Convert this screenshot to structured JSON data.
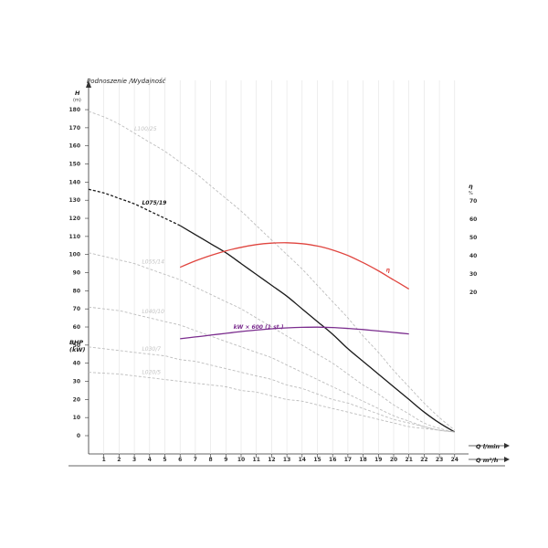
{
  "chart_data": {
    "type": "line",
    "title": "Podnoszenie /Wydajność",
    "y_left": {
      "label": "H",
      "unit": "(m)",
      "range": [
        0,
        180
      ],
      "ticks": [
        0,
        10,
        20,
        30,
        40,
        50,
        60,
        70,
        80,
        90,
        100,
        110,
        120,
        130,
        140,
        150,
        160,
        170,
        180
      ]
    },
    "y_right": {
      "label": "η",
      "unit": "%",
      "ticks": [
        20,
        30,
        40,
        50,
        60,
        70
      ]
    },
    "y_bhp": {
      "label": "BHP",
      "unit": "(kW)"
    },
    "x": {
      "label_top": "Q l/min",
      "label_bottom": "Q m³/h",
      "range": [
        0,
        24
      ],
      "ticks": [
        1,
        2,
        3,
        4,
        5,
        6,
        7,
        8,
        9,
        10,
        11,
        12,
        13,
        14,
        15,
        16,
        17,
        18,
        19,
        20,
        21,
        22,
        23,
        24
      ]
    },
    "series": [
      {
        "name": "L075/19",
        "kind": "highlight",
        "color": "#1a1a1a",
        "label_at": 3.5,
        "points": [
          [
            0,
            136
          ],
          [
            1,
            134
          ],
          [
            2,
            131
          ],
          [
            3,
            128
          ],
          [
            4,
            124
          ],
          [
            5,
            120
          ],
          [
            6,
            116
          ],
          [
            7,
            111
          ],
          [
            8,
            106
          ],
          [
            9,
            101
          ],
          [
            10,
            95
          ],
          [
            11,
            89
          ],
          [
            12,
            83
          ],
          [
            13,
            77
          ],
          [
            14,
            70
          ],
          [
            15,
            63
          ],
          [
            16,
            56
          ],
          [
            17,
            48
          ],
          [
            18,
            41
          ],
          [
            19,
            34
          ],
          [
            20,
            27
          ],
          [
            21,
            20
          ],
          [
            22,
            13
          ],
          [
            23,
            7
          ],
          [
            24,
            2
          ]
        ]
      },
      {
        "name": "L100/25",
        "kind": "gray",
        "color": "#bdbdbd",
        "label_at": 3.0,
        "points": [
          [
            0,
            179
          ],
          [
            1,
            176
          ],
          [
            2,
            172
          ],
          [
            3,
            167
          ],
          [
            4,
            162
          ],
          [
            5,
            157
          ],
          [
            6,
            151
          ],
          [
            7,
            145
          ],
          [
            8,
            138
          ],
          [
            9,
            131
          ],
          [
            10,
            124
          ],
          [
            11,
            116
          ],
          [
            12,
            108
          ],
          [
            13,
            100
          ],
          [
            14,
            92
          ],
          [
            15,
            83
          ],
          [
            16,
            74
          ],
          [
            17,
            65
          ],
          [
            18,
            55
          ],
          [
            19,
            46
          ],
          [
            20,
            36
          ],
          [
            21,
            27
          ],
          [
            22,
            18
          ],
          [
            23,
            10
          ],
          [
            24,
            3
          ]
        ]
      },
      {
        "name": "L055/14",
        "kind": "gray",
        "color": "#bdbdbd",
        "label_at": 3.5,
        "points": [
          [
            0,
            101
          ],
          [
            1,
            99
          ],
          [
            2,
            97
          ],
          [
            3,
            95
          ],
          [
            4,
            92
          ],
          [
            5,
            89
          ],
          [
            6,
            86
          ],
          [
            7,
            82
          ],
          [
            8,
            78
          ],
          [
            9,
            74
          ],
          [
            10,
            70
          ],
          [
            11,
            65
          ],
          [
            12,
            60
          ],
          [
            13,
            55
          ],
          [
            14,
            50
          ],
          [
            15,
            45
          ],
          [
            16,
            40
          ],
          [
            17,
            34
          ],
          [
            18,
            28
          ],
          [
            19,
            23
          ],
          [
            20,
            17
          ],
          [
            21,
            12
          ],
          [
            22,
            7
          ],
          [
            23,
            4
          ],
          [
            24,
            2
          ]
        ]
      },
      {
        "name": "L040/10",
        "kind": "gray",
        "color": "#bdbdbd",
        "label_at": 3.5,
        "points": [
          [
            0,
            71
          ],
          [
            1,
            70
          ],
          [
            2,
            69
          ],
          [
            3,
            67
          ],
          [
            4,
            65
          ],
          [
            5,
            63
          ],
          [
            6,
            61
          ],
          [
            7,
            58
          ],
          [
            8,
            55
          ],
          [
            9,
            52
          ],
          [
            10,
            49
          ],
          [
            11,
            46
          ],
          [
            12,
            43
          ],
          [
            13,
            39
          ],
          [
            14,
            35
          ],
          [
            15,
            31
          ],
          [
            16,
            27
          ],
          [
            17,
            23
          ],
          [
            18,
            19
          ],
          [
            19,
            15
          ],
          [
            20,
            11
          ],
          [
            21,
            8
          ],
          [
            22,
            5
          ],
          [
            23,
            3
          ],
          [
            24,
            2
          ]
        ]
      },
      {
        "name": "L030/7",
        "kind": "gray",
        "color": "#bdbdbd",
        "label_at": 3.5,
        "points": [
          [
            0,
            49
          ],
          [
            1,
            48
          ],
          [
            2,
            47
          ],
          [
            3,
            46
          ],
          [
            4,
            45
          ],
          [
            5,
            44
          ],
          [
            6,
            42
          ],
          [
            7,
            41
          ],
          [
            8,
            39
          ],
          [
            9,
            37
          ],
          [
            10,
            35
          ],
          [
            11,
            33
          ],
          [
            12,
            31
          ],
          [
            13,
            28
          ],
          [
            14,
            26
          ],
          [
            15,
            23
          ],
          [
            16,
            20
          ],
          [
            17,
            18
          ],
          [
            18,
            15
          ],
          [
            19,
            12
          ],
          [
            20,
            9
          ],
          [
            21,
            7
          ],
          [
            22,
            5
          ],
          [
            23,
            3
          ],
          [
            24,
            2
          ]
        ]
      },
      {
        "name": "L020/5",
        "kind": "gray",
        "color": "#bdbdbd",
        "label_at": 3.5,
        "points": [
          [
            0,
            35
          ],
          [
            1,
            34.5
          ],
          [
            2,
            34
          ],
          [
            3,
            33
          ],
          [
            4,
            32
          ],
          [
            5,
            31
          ],
          [
            6,
            30
          ],
          [
            7,
            29
          ],
          [
            8,
            28
          ],
          [
            9,
            27
          ],
          [
            10,
            25
          ],
          [
            11,
            24
          ],
          [
            12,
            22
          ],
          [
            13,
            20
          ],
          [
            14,
            19
          ],
          [
            15,
            17
          ],
          [
            16,
            15
          ],
          [
            17,
            13
          ],
          [
            18,
            11
          ],
          [
            19,
            9
          ],
          [
            20,
            7
          ],
          [
            21,
            5
          ],
          [
            22,
            4
          ],
          [
            23,
            3
          ],
          [
            24,
            2
          ]
        ]
      },
      {
        "name": "η",
        "kind": "efficiency",
        "color": "#e0453f",
        "label_at": 19.5,
        "points": [
          [
            6,
            93
          ],
          [
            7,
            96.5
          ],
          [
            8,
            99.5
          ],
          [
            9,
            102
          ],
          [
            10,
            104
          ],
          [
            11,
            105.5
          ],
          [
            12,
            106.3
          ],
          [
            13,
            106.5
          ],
          [
            14,
            106
          ],
          [
            15,
            104.7
          ],
          [
            16,
            102.5
          ],
          [
            17,
            99.5
          ],
          [
            18,
            95.5
          ],
          [
            19,
            91
          ],
          [
            20,
            86
          ],
          [
            21,
            81
          ]
        ]
      },
      {
        "name": "kW × 600 (1 st.)",
        "kind": "power",
        "color": "#7b2d8e",
        "label_at": 9.5,
        "points": [
          [
            6,
            53.5
          ],
          [
            7,
            54.5
          ],
          [
            8,
            55.5
          ],
          [
            9,
            56.5
          ],
          [
            10,
            57.5
          ],
          [
            11,
            58.3
          ],
          [
            12,
            59
          ],
          [
            13,
            59.5
          ],
          [
            14,
            59.8
          ],
          [
            15,
            59.9
          ],
          [
            16,
            59.7
          ],
          [
            17,
            59.2
          ],
          [
            18,
            58.6
          ],
          [
            19,
            57.8
          ],
          [
            20,
            57
          ],
          [
            21,
            56.2
          ]
        ]
      }
    ]
  }
}
